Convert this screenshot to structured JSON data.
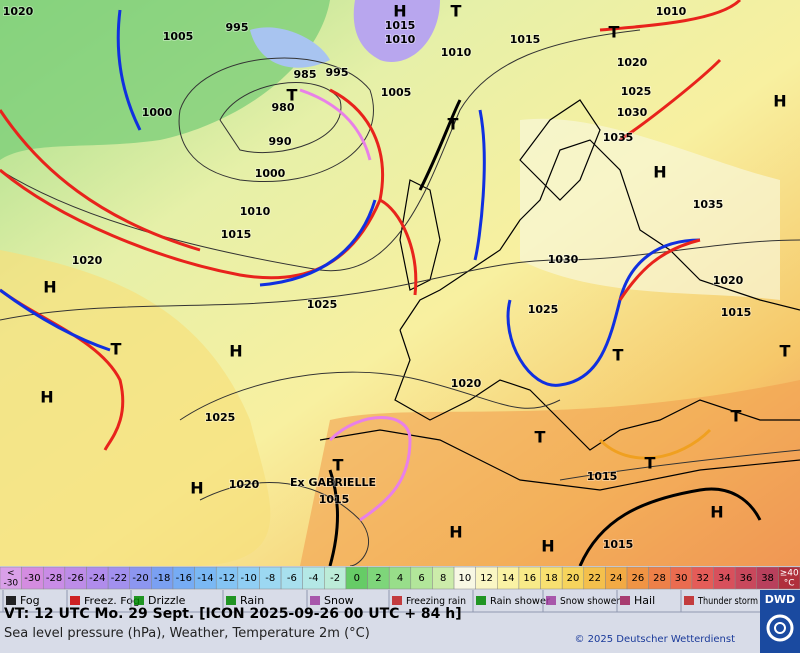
{
  "map": {
    "pressure_labels": [
      1020,
      1005,
      995,
      1015,
      1010,
      1010,
      1015,
      1010,
      1020,
      1025,
      1030,
      1035,
      985,
      995,
      980,
      990,
      1005,
      1000,
      1000,
      1010,
      1015,
      1020,
      1025,
      1035,
      1030,
      1020,
      1015,
      1025,
      1020,
      1025,
      1020,
      1015,
      1015,
      1015
    ],
    "highs": [
      "H",
      "H",
      "H",
      "H",
      "H",
      "H",
      "H",
      "H",
      "H",
      "H"
    ],
    "lows": [
      "T",
      "T",
      "T",
      "T",
      "T",
      "T",
      "T",
      "T",
      "T",
      "T",
      "T"
    ],
    "storm_name": "Ex GABRIELLE"
  },
  "temperature_scale": {
    "below": [
      "<",
      "-30"
    ],
    "above": [
      "≥40",
      "°C"
    ],
    "below_color": "#d9a0e8",
    "above_color": "#b0303c",
    "steps": [
      {
        "value": -30,
        "color": "#d48ce0"
      },
      {
        "value": -28,
        "color": "#c98ce6"
      },
      {
        "value": -26,
        "color": "#bd8ce8"
      },
      {
        "value": -24,
        "color": "#b08cec"
      },
      {
        "value": -22,
        "color": "#a290ee"
      },
      {
        "value": -20,
        "color": "#8c96f0"
      },
      {
        "value": -18,
        "color": "#7aa0f2"
      },
      {
        "value": -16,
        "color": "#76acf4"
      },
      {
        "value": -14,
        "color": "#7ab8f4"
      },
      {
        "value": -12,
        "color": "#84c4f4"
      },
      {
        "value": -10,
        "color": "#90cef4"
      },
      {
        "value": -8,
        "color": "#9cd8f2"
      },
      {
        "value": -6,
        "color": "#a8e0ee"
      },
      {
        "value": -4,
        "color": "#b4e8e6"
      },
      {
        "value": -2,
        "color": "#bcecd8"
      },
      {
        "value": 0,
        "color": "#66cc66"
      },
      {
        "value": 2,
        "color": "#7ed67a"
      },
      {
        "value": 4,
        "color": "#98de8a"
      },
      {
        "value": 6,
        "color": "#b2e69a"
      },
      {
        "value": 8,
        "color": "#ccecaa"
      },
      {
        "value": 10,
        "color": "#f8f8e4"
      },
      {
        "value": 12,
        "color": "#faf6c4"
      },
      {
        "value": 14,
        "color": "#faf2a4"
      },
      {
        "value": 16,
        "color": "#f8ea88"
      },
      {
        "value": 18,
        "color": "#f8e070"
      },
      {
        "value": 20,
        "color": "#f6d45c"
      },
      {
        "value": 22,
        "color": "#f4c04c"
      },
      {
        "value": 24,
        "color": "#f2aa44"
      },
      {
        "value": 26,
        "color": "#f09444"
      },
      {
        "value": 28,
        "color": "#ee8048"
      },
      {
        "value": 30,
        "color": "#ea6c50"
      },
      {
        "value": 32,
        "color": "#e45c58"
      },
      {
        "value": 34,
        "color": "#d8505c"
      },
      {
        "value": 36,
        "color": "#c8485c"
      },
      {
        "value": 38,
        "color": "#b8405c"
      }
    ]
  },
  "weather_legend": [
    "Fog",
    "Freez. Fog",
    "Drizzle",
    "Rain",
    "Snow",
    "Freezing rain",
    "Rain shower",
    "Snow shower",
    "Hail",
    "Thunder storm"
  ],
  "footer": {
    "valid_time": "VT: 12 UTC Mo.   29 Sept. [ICON 2025-09-26  00 UTC + 84 h]",
    "description": "Sea level pressure (hPa), Weather, Temperature 2m (°C)",
    "copyright": "© 2025 Deutscher Wetterdienst",
    "logo": "DWD"
  }
}
